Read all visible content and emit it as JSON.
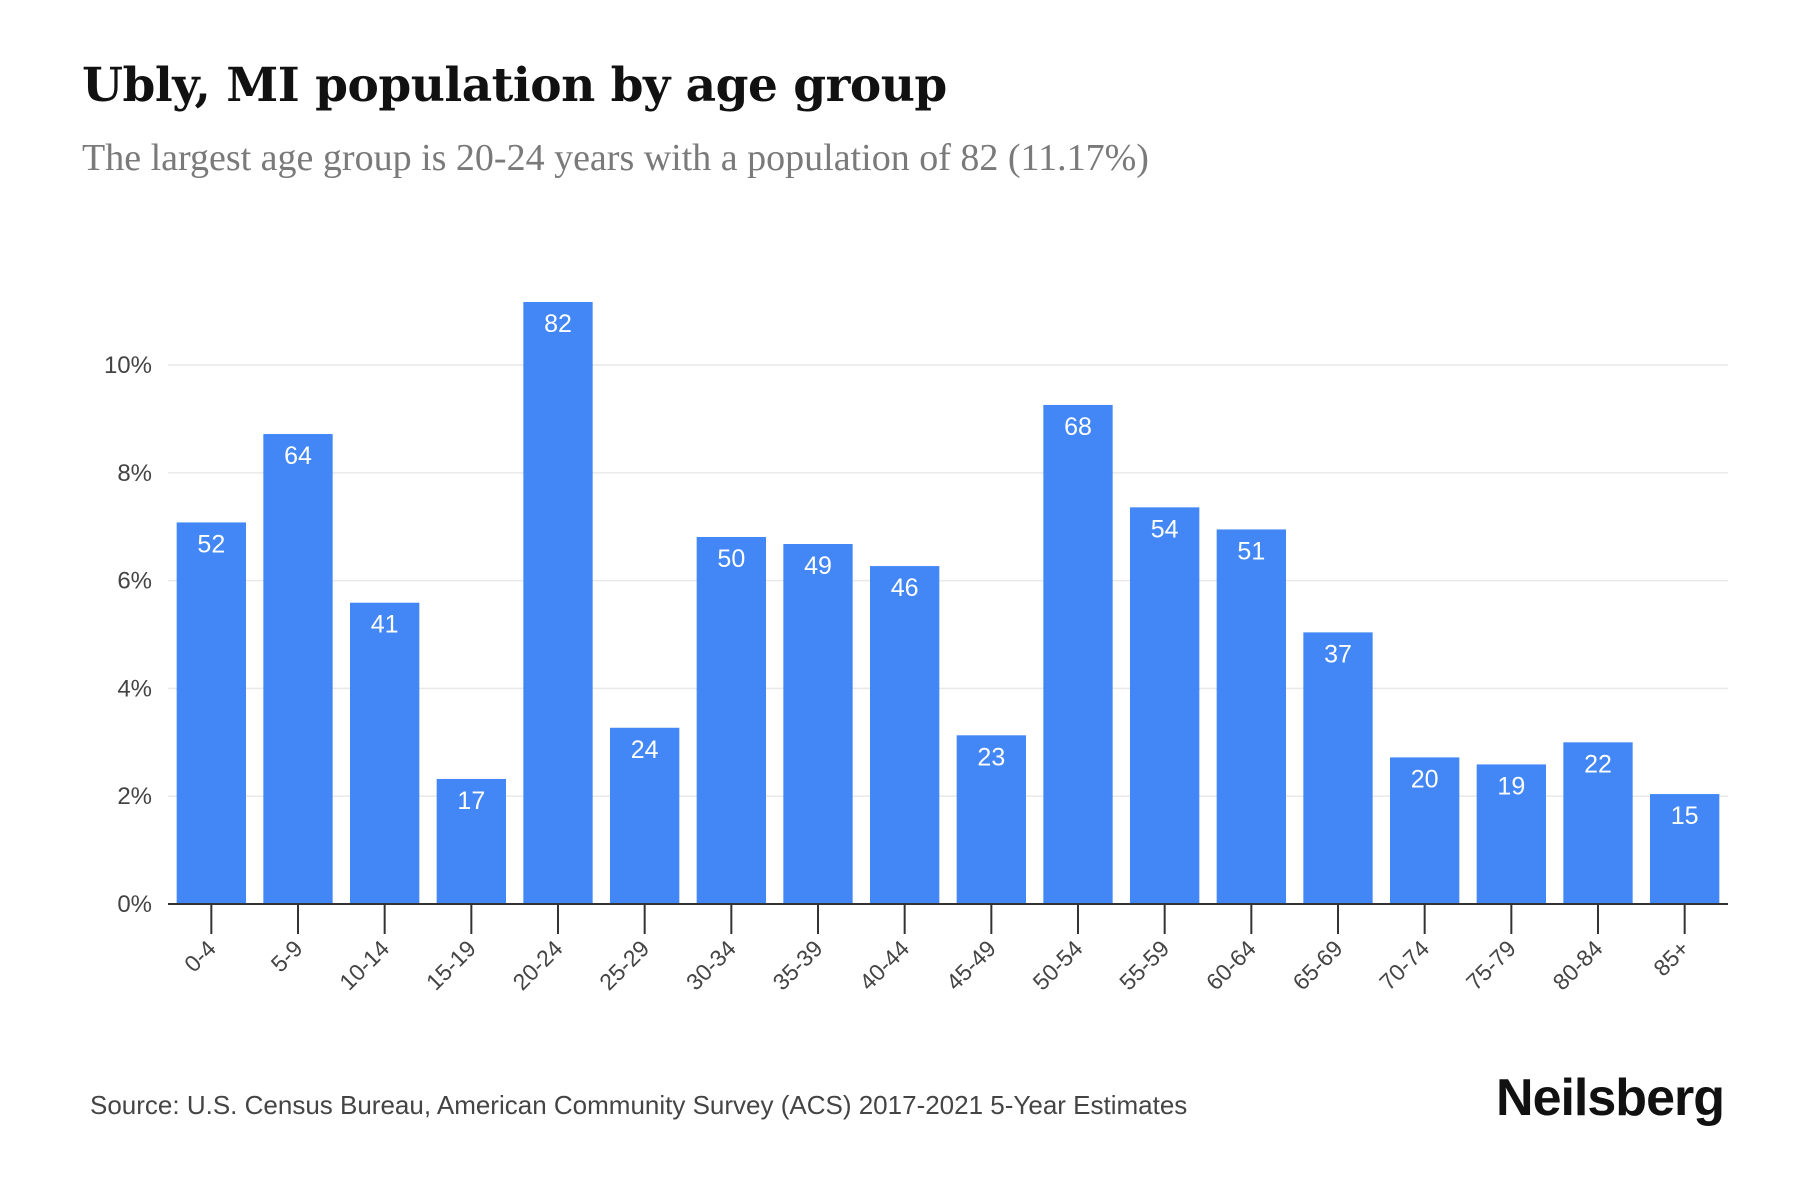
{
  "chart_data": {
    "type": "bar",
    "title": "Ubly, MI population by age group",
    "subtitle": "The largest age group is 20-24 years with a population of 82 (11.17%)",
    "xlabel": "",
    "ylabel": "",
    "categories": [
      "0-4",
      "5-9",
      "10-14",
      "15-19",
      "20-24",
      "25-29",
      "30-34",
      "35-39",
      "40-44",
      "45-49",
      "50-54",
      "55-59",
      "60-64",
      "65-69",
      "70-74",
      "75-79",
      "80-84",
      "85+"
    ],
    "values": [
      7.08,
      8.72,
      5.59,
      2.32,
      11.17,
      3.27,
      6.81,
      6.68,
      6.27,
      3.13,
      9.26,
      7.36,
      6.95,
      5.04,
      2.72,
      2.59,
      3.0,
      2.04
    ],
    "counts": [
      "52",
      "64",
      "41",
      "17",
      "82",
      "24",
      "50",
      "49",
      "46",
      "23",
      "68",
      "54",
      "51",
      "37",
      "20",
      "19",
      "22",
      "15"
    ],
    "ylim": [
      0,
      11.17
    ],
    "yticks": [
      0,
      2,
      4,
      6,
      8,
      10
    ],
    "ytick_labels": [
      "0%",
      "2%",
      "4%",
      "6%",
      "8%",
      "10%"
    ],
    "grid": true,
    "bar_color": "#4287f5"
  },
  "footer": {
    "source": "Source: U.S. Census Bureau, American Community Survey (ACS) 2017-2021 5-Year Estimates",
    "brand": "Neilsberg"
  }
}
